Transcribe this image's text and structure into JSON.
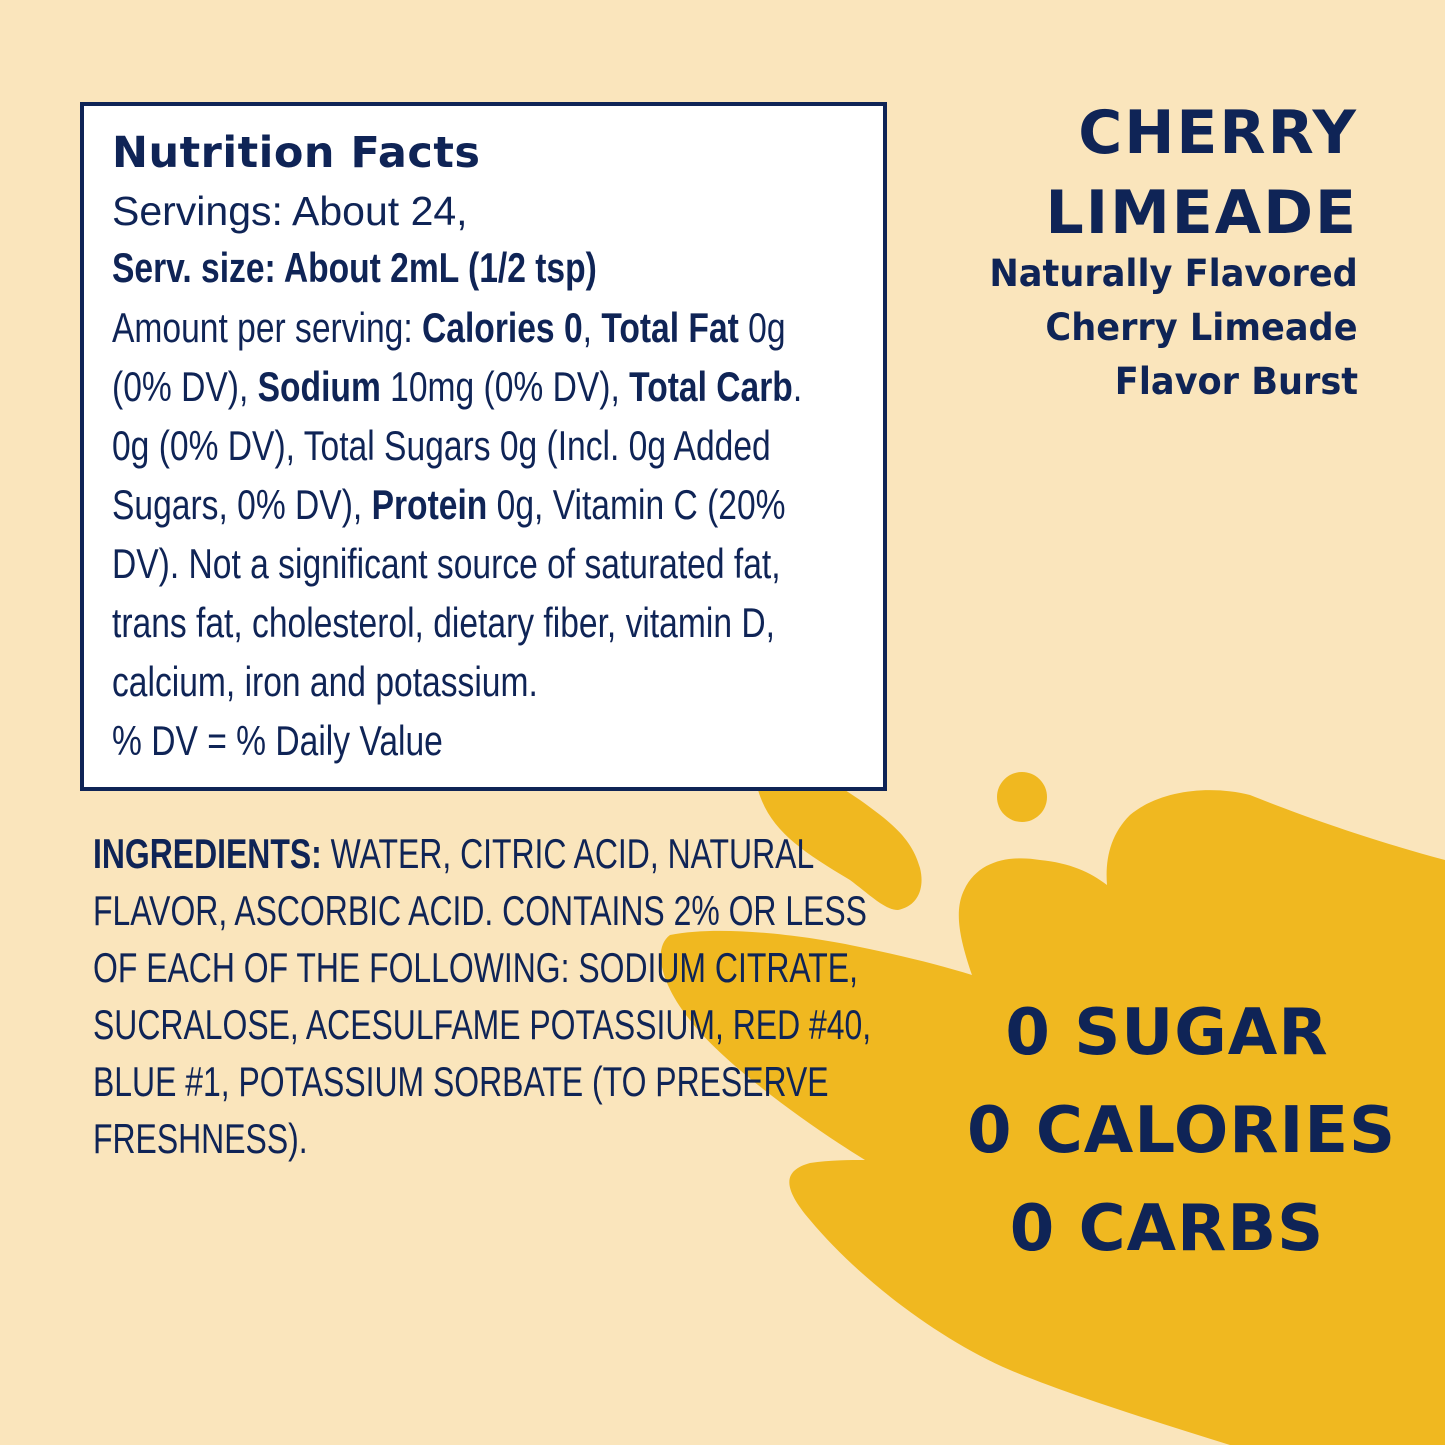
{
  "colors": {
    "background": "#FAE5BC",
    "splash": "#F0B820",
    "navy": "#0F2456",
    "panel": "#FFFFFF"
  },
  "nutrition": {
    "title": "Nutrition Facts",
    "servings": "Servings: About 24,",
    "serving_size": "Serv. size: About 2mL (1/2 tsp)",
    "lines": [
      [
        {
          "t": "Amount per serving: "
        },
        {
          "t": "Calories 0",
          "b": true
        },
        {
          "t": ", "
        },
        {
          "t": "Total Fat",
          "b": true
        },
        {
          "t": " 0g"
        }
      ],
      [
        {
          "t": "(0% DV), "
        },
        {
          "t": "Sodium",
          "b": true
        },
        {
          "t": " 10mg (0% DV), "
        },
        {
          "t": "Total Carb",
          "b": true
        },
        {
          "t": "."
        }
      ],
      [
        {
          "t": "0g (0% DV), Total Sugars 0g (Incl. 0g Added"
        }
      ],
      [
        {
          "t": "Sugars, 0% DV), "
        },
        {
          "t": "Protein",
          "b": true
        },
        {
          "t": " 0g, Vitamin C (20%"
        }
      ],
      [
        {
          "t": "DV). Not a significant source of saturated fat,"
        }
      ],
      [
        {
          "t": "trans fat, cholesterol, dietary fiber, vitamin D,"
        }
      ],
      [
        {
          "t": "calcium, iron and potassium."
        }
      ],
      [
        {
          "t": "% DV = % Daily Value"
        }
      ]
    ]
  },
  "ingredients": {
    "label": "INGREDIENTS:",
    "lines": [
      " WATER, CITRIC ACID, NATURAL",
      "FLAVOR, ASCORBIC ACID. CONTAINS 2% OR LESS",
      "OF EACH OF THE FOLLOWING: SODIUM CITRATE,",
      "SUCRALOSE, ACESULFAME POTASSIUM, RED #40,",
      "BLUE #1, POTASSIUM SORBATE  (TO PRESERVE",
      "FRESHNESS)."
    ]
  },
  "product": {
    "name_lines": [
      "CHERRY",
      "LIMEADE"
    ],
    "subtitle_lines": [
      "Naturally Flavored",
      "Cherry Limeade",
      "Flavor Burst"
    ]
  },
  "claims": [
    "0 SUGAR",
    "0 CALORIES",
    "0 CARBS"
  ]
}
